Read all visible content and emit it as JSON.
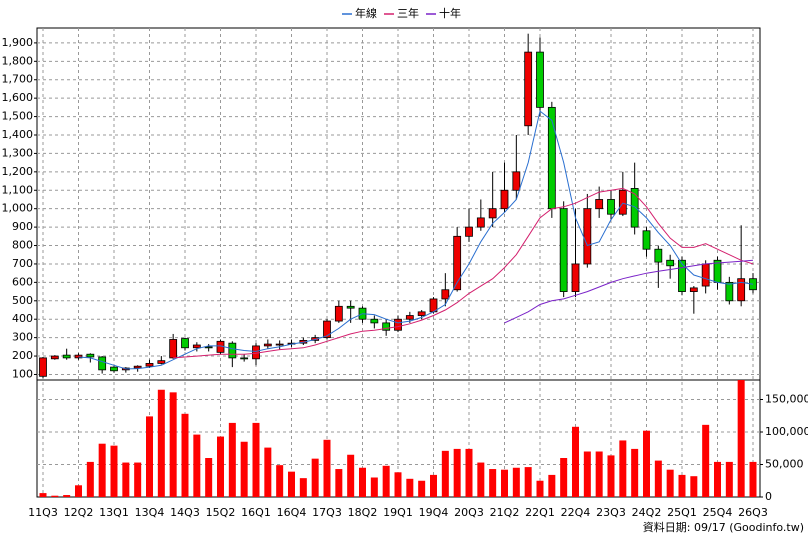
{
  "chart_data": {
    "type": "candlestick",
    "footnote": "資料日期: 09/17 (Goodinfo.tw)",
    "categories": [
      "11Q3",
      null,
      null,
      "12Q2",
      null,
      null,
      "13Q1",
      null,
      null,
      "13Q4",
      null,
      null,
      "14Q3",
      null,
      null,
      "15Q2",
      null,
      null,
      "16Q1",
      null,
      null,
      "16Q4",
      null,
      null,
      "17Q3",
      null,
      null,
      "18Q2",
      null,
      null,
      "19Q1",
      null,
      null,
      "19Q4",
      null,
      null,
      "20Q3",
      null,
      null,
      "21Q2",
      null,
      null,
      "22Q1",
      null,
      null,
      "22Q4",
      null,
      null,
      "23Q3",
      null,
      null,
      "24Q2",
      null,
      null,
      "25Q1",
      null,
      null,
      "25Q4",
      null,
      null,
      "26Q3"
    ],
    "up_color": "#ee0000",
    "down_color": "#00cc00",
    "open": [
      90,
      185,
      205,
      190,
      210,
      195,
      140,
      125,
      135,
      145,
      160,
      190,
      295,
      245,
      250,
      220,
      270,
      190,
      185,
      255,
      260,
      265,
      270,
      285,
      300,
      390,
      470,
      460,
      400,
      380,
      340,
      400,
      420,
      440,
      510,
      560,
      850,
      900,
      950,
      1000,
      1100,
      1450,
      1850,
      1550,
      1000,
      550,
      700,
      1000,
      1050,
      970,
      1110,
      880,
      780,
      720,
      720,
      550,
      580,
      720,
      600,
      500,
      620
    ],
    "high": [
      195,
      205,
      240,
      215,
      215,
      200,
      145,
      140,
      150,
      180,
      200,
      320,
      300,
      275,
      265,
      290,
      280,
      210,
      270,
      290,
      285,
      290,
      300,
      315,
      400,
      500,
      500,
      470,
      420,
      400,
      420,
      440,
      450,
      520,
      650,
      900,
      1000,
      1050,
      1200,
      1250,
      1400,
      1950,
      1930,
      1580,
      1040,
      1000,
      1080,
      1120,
      1100,
      1200,
      1250,
      900,
      800,
      750,
      740,
      580,
      720,
      740,
      630,
      910,
      650
    ],
    "low": [
      80,
      180,
      180,
      180,
      165,
      105,
      110,
      110,
      115,
      135,
      155,
      185,
      230,
      225,
      225,
      210,
      140,
      170,
      150,
      240,
      235,
      250,
      260,
      270,
      290,
      380,
      380,
      380,
      350,
      310,
      330,
      380,
      400,
      430,
      470,
      550,
      820,
      880,
      900,
      980,
      1050,
      1400,
      1500,
      950,
      520,
      520,
      680,
      950,
      940,
      960,
      860,
      740,
      570,
      620,
      530,
      430,
      540,
      560,
      480,
      470,
      540
    ],
    "close": [
      190,
      200,
      190,
      205,
      195,
      125,
      120,
      135,
      145,
      160,
      175,
      290,
      245,
      260,
      245,
      280,
      190,
      185,
      255,
      265,
      265,
      270,
      285,
      300,
      390,
      470,
      460,
      400,
      380,
      340,
      400,
      420,
      440,
      510,
      560,
      850,
      900,
      950,
      1000,
      1100,
      1200,
      1850,
      1550,
      1000,
      550,
      700,
      1000,
      1050,
      970,
      1100,
      900,
      780,
      710,
      690,
      550,
      570,
      700,
      600,
      500,
      620,
      560
    ],
    "series": [
      {
        "name": "年線",
        "color": "#2a6fd0",
        "values": [
          null,
          null,
          null,
          195,
          190,
          170,
          150,
          130,
          132,
          140,
          150,
          180,
          210,
          240,
          255,
          255,
          240,
          230,
          225,
          240,
          250,
          265,
          275,
          290,
          310,
          350,
          400,
          430,
          425,
          400,
          380,
          390,
          410,
          440,
          480,
          600,
          700,
          820,
          920,
          980,
          1050,
          1250,
          1530,
          1480,
          1250,
          950,
          800,
          820,
          940,
          1030,
          1010,
          950,
          870,
          800,
          700,
          640,
          620,
          600,
          590,
          600,
          590
        ]
      },
      {
        "name": "三年",
        "color": "#d4206e",
        "values": [
          null,
          null,
          null,
          null,
          null,
          null,
          null,
          null,
          null,
          null,
          null,
          190,
          195,
          200,
          205,
          210,
          210,
          210,
          215,
          225,
          235,
          240,
          245,
          260,
          280,
          300,
          320,
          335,
          340,
          350,
          360,
          375,
          395,
          420,
          450,
          490,
          540,
          580,
          620,
          680,
          750,
          850,
          950,
          1000,
          1010,
          1030,
          1060,
          1090,
          1100,
          1110,
          1080,
          1010,
          920,
          840,
          790,
          790,
          810,
          780,
          750,
          720,
          700
        ]
      },
      {
        "name": "十年",
        "color": "#7a22c8",
        "values": [
          null,
          null,
          null,
          null,
          null,
          null,
          null,
          null,
          null,
          null,
          null,
          null,
          null,
          null,
          null,
          null,
          null,
          null,
          null,
          null,
          null,
          null,
          null,
          null,
          null,
          null,
          null,
          null,
          null,
          null,
          null,
          null,
          null,
          null,
          null,
          null,
          null,
          null,
          null,
          380,
          410,
          440,
          480,
          500,
          510,
          530,
          550,
          575,
          600,
          620,
          635,
          650,
          660,
          670,
          680,
          690,
          700,
          705,
          710,
          715,
          720
        ]
      },
      {
        "axis": "y2",
        "color": "#ff0000",
        "values": [
          6000,
          2000,
          3000,
          18000,
          54000,
          82000,
          79000,
          53000,
          53000,
          124000,
          165000,
          161000,
          128000,
          96000,
          60000,
          93000,
          114000,
          85000,
          114000,
          76000,
          49000,
          39000,
          29000,
          59000,
          88000,
          43000,
          65000,
          45000,
          30000,
          48000,
          38000,
          28000,
          25000,
          34000,
          71000,
          74000,
          74000,
          53000,
          43000,
          42000,
          45000,
          46000,
          25000,
          34000,
          60000,
          108000,
          70000,
          70000,
          64000,
          87000,
          74000,
          102000,
          56000,
          42000,
          34000,
          32000,
          111000,
          54000,
          54000,
          180000,
          54000
        ]
      }
    ],
    "ylim": [
      70,
      1970
    ],
    "yticks": [
      100,
      200,
      300,
      400,
      500,
      600,
      700,
      800,
      900,
      {
        "value": 1000,
        "label": "1,000"
      },
      {
        "value": 1100,
        "label": "1,100"
      },
      {
        "value": 1200,
        "label": "1,200"
      },
      {
        "value": 1300,
        "label": "1,300"
      },
      {
        "value": 1400,
        "label": "1,400"
      },
      {
        "value": 1500,
        "label": "1,500"
      },
      {
        "value": 1600,
        "label": "1,600"
      },
      {
        "value": 1700,
        "label": "1,700"
      },
      {
        "value": 1800,
        "label": "1,800"
      },
      {
        "value": 1900,
        "label": "1,900"
      }
    ],
    "y2lim": [
      0,
      180000
    ],
    "y2ticks": [
      0,
      {
        "value": 50000,
        "label": "50,000"
      },
      {
        "value": 100000,
        "label": "100,000"
      },
      {
        "value": 150000,
        "label": "150,000"
      }
    ],
    "grid": true,
    "legend": "top"
  }
}
